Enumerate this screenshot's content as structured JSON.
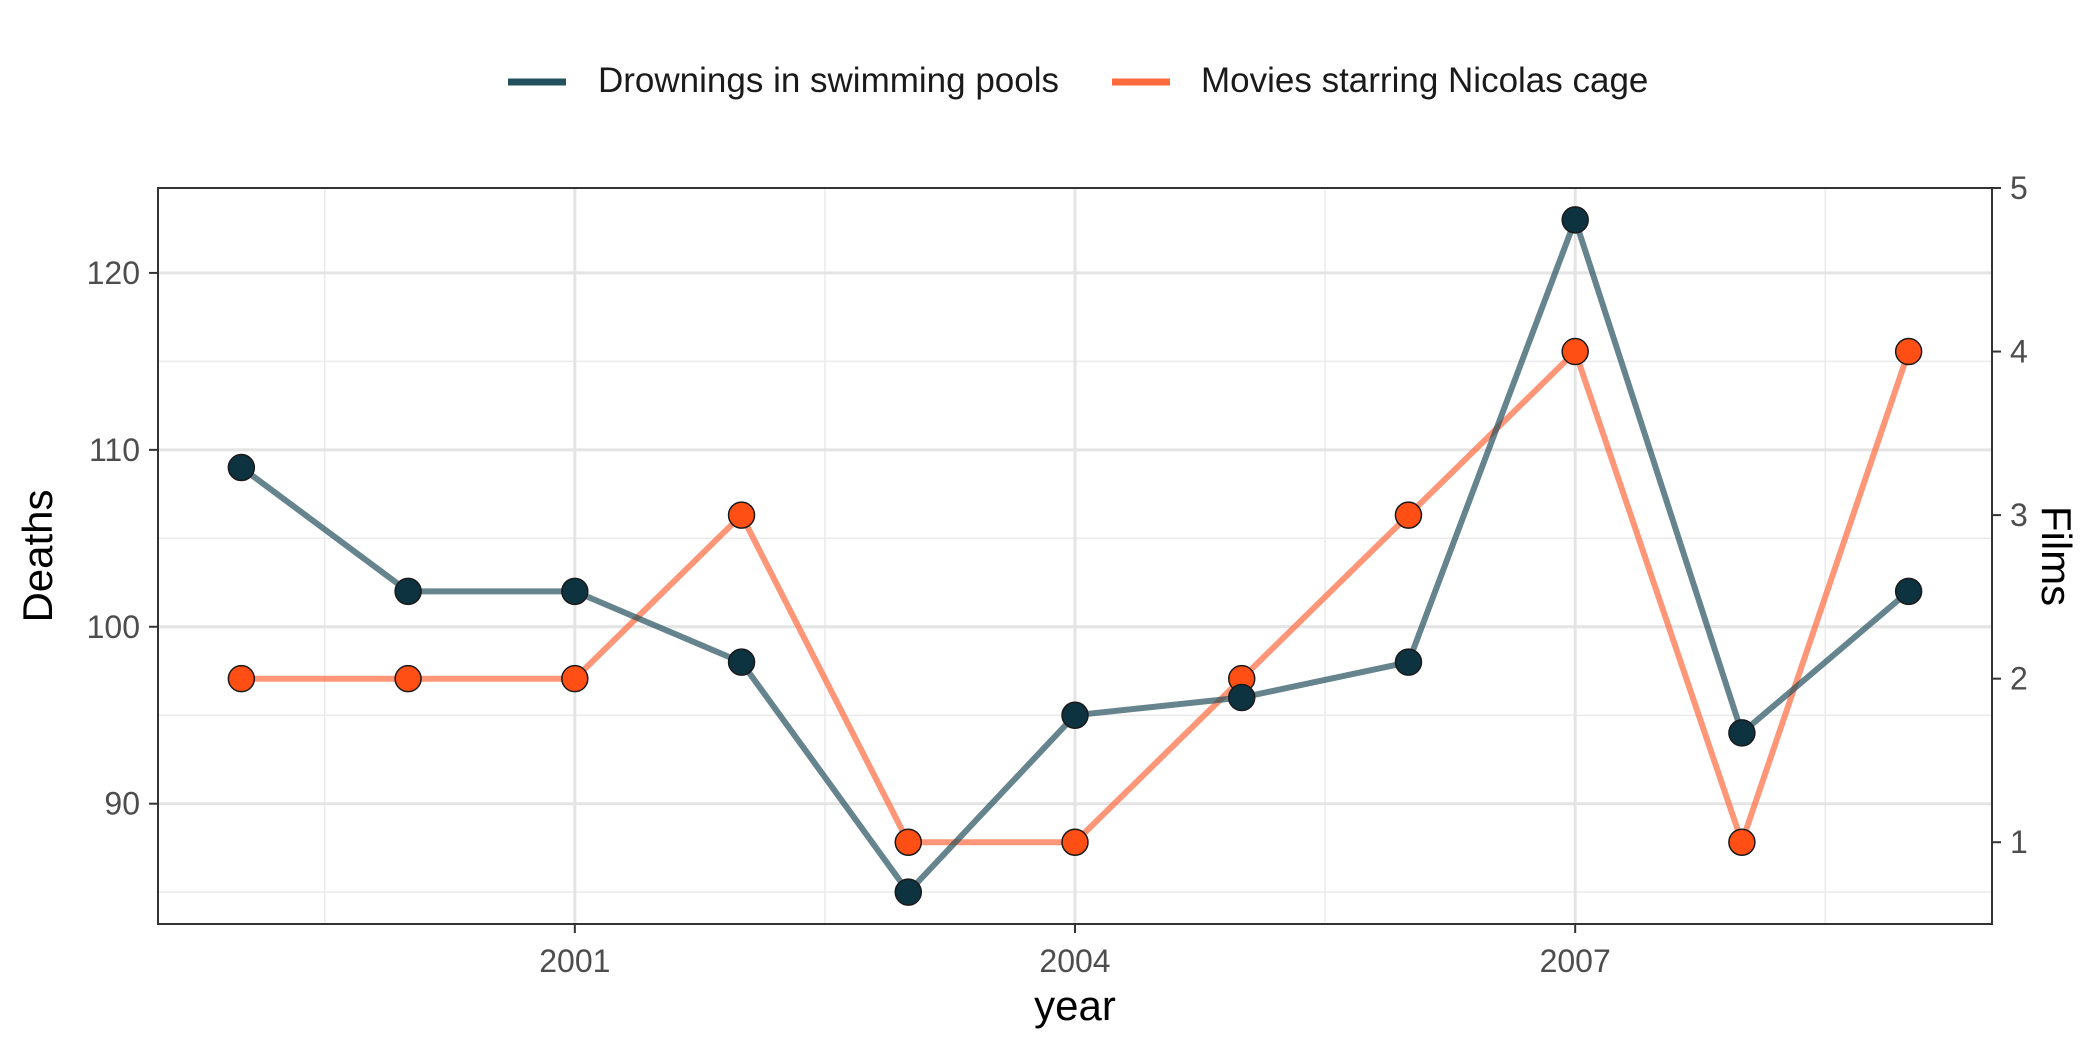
{
  "chart_data": {
    "type": "line",
    "title": "",
    "xlabel": "year",
    "ylabel": "Deaths",
    "y2label": "Films",
    "x": [
      1999,
      2000,
      2001,
      2002,
      2003,
      2004,
      2005,
      2006,
      2007,
      2008,
      2009
    ],
    "xlim": [
      1998.5,
      2009.5
    ],
    "xticks": [
      "2001",
      "2004",
      "2007"
    ],
    "ylim": [
      83.2,
      124.8
    ],
    "yticks": [
      "90",
      "100",
      "110",
      "120"
    ],
    "y2lim": [
      0.5,
      5.0
    ],
    "y2ticks": [
      "1",
      "2",
      "3",
      "4",
      "5"
    ],
    "grid": true,
    "legend_position": "top",
    "series": [
      {
        "name": "Drownings in swimming pools",
        "axis": "left",
        "values": [
          109,
          102,
          102,
          98,
          85,
          95,
          96,
          98,
          123,
          94,
          102
        ],
        "line_color": "#23505d",
        "point_fill": "#0e3340"
      },
      {
        "name": "Movies starring Nicolas cage",
        "axis": "right",
        "values": [
          2,
          2,
          2,
          3,
          1,
          1,
          2,
          3,
          4,
          1,
          4
        ],
        "line_color": "#ff6a3d",
        "point_fill": "#ff4f14"
      }
    ]
  }
}
